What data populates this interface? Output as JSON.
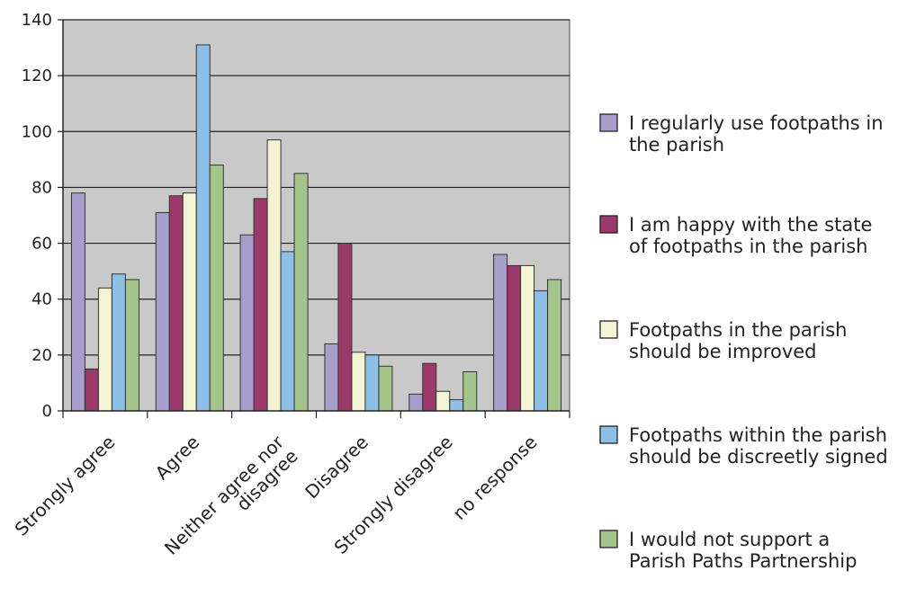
{
  "chart_data": {
    "type": "bar",
    "categories": [
      "Strongly agree",
      "Agree",
      "Neither agree nor disagree",
      "Disagree",
      "Strongly disagree",
      "no response"
    ],
    "category_label_lines": [
      [
        "Strongly agree"
      ],
      [
        "Agree"
      ],
      [
        "Neither agree nor",
        "disagree"
      ],
      [
        "Disagree"
      ],
      [
        "Strongly disagree"
      ],
      [
        "no response"
      ]
    ],
    "series": [
      {
        "name": "I regularly use footpaths in the parish",
        "legend_lines": [
          "I regularly use footpaths in",
          "the parish"
        ],
        "color": "#a89ecb",
        "values": [
          78,
          71,
          63,
          24,
          6,
          56
        ]
      },
      {
        "name": "I am happy with the state of footpaths in the parish",
        "legend_lines": [
          "I am happy with the state",
          "of footpaths in the parish"
        ],
        "color": "#9b3a6a",
        "values": [
          15,
          77,
          76,
          60,
          17,
          52
        ]
      },
      {
        "name": "Footpaths in the parish should be improved",
        "legend_lines": [
          "Footpaths in the parish",
          "should be improved"
        ],
        "color": "#f2f4d4",
        "values": [
          44,
          78,
          97,
          21,
          7,
          52
        ]
      },
      {
        "name": "Footpaths within the parish should be discreetly signed",
        "legend_lines": [
          "Footpaths  within the parish",
          "should be discreetly signed"
        ],
        "color": "#8ebfe6",
        "values": [
          49,
          131,
          57,
          20,
          4,
          43
        ]
      },
      {
        "name": "I would not support a Parish Paths Partnership",
        "legend_lines": [
          "I would not support a",
          "Parish Paths Partnership"
        ],
        "color": "#a3c48a",
        "values": [
          47,
          88,
          85,
          16,
          14,
          47
        ]
      }
    ],
    "ylim": [
      0,
      140
    ],
    "yticks": [
      0,
      20,
      40,
      60,
      80,
      100,
      120,
      140
    ],
    "grid": true,
    "plot_background": "#c9c9c9",
    "legend_position": "right"
  }
}
